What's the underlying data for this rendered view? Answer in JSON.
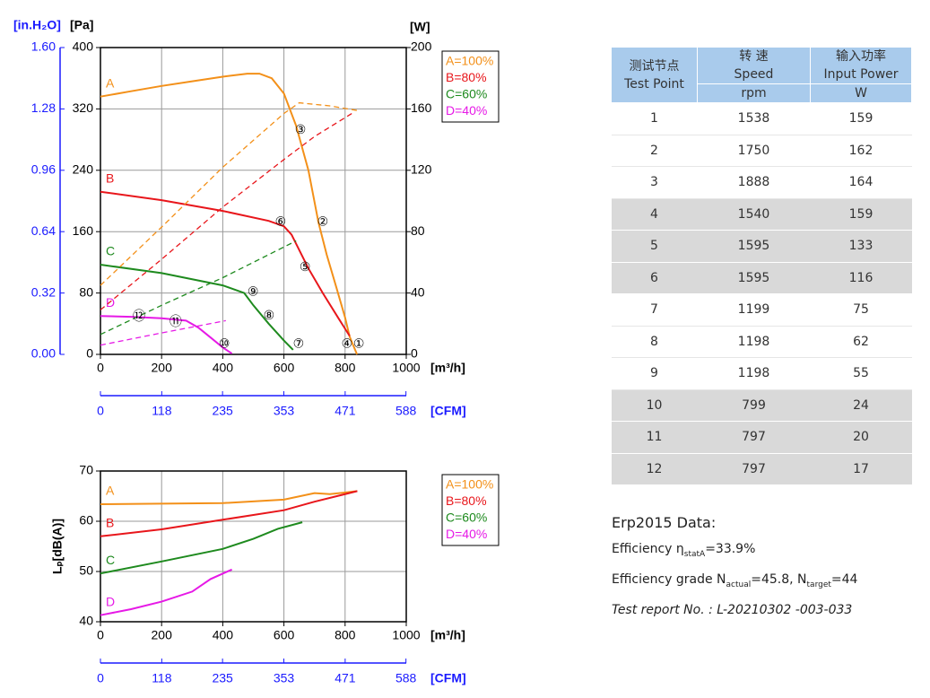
{
  "chart_data": [
    {
      "type": "line",
      "x_label": "[m³/h]",
      "x2_label": "[CFM]",
      "y_label": "[Pa]",
      "y2_label": "[W]",
      "y3_label": "[in.H₂O]",
      "xlim": [
        0,
        1000
      ],
      "xticks": [
        0,
        200,
        400,
        600,
        800,
        1000
      ],
      "x2lim": [
        0,
        588.6
      ],
      "x2ticks": [
        0,
        118,
        235,
        353,
        471,
        588
      ],
      "ylim": [
        0,
        400
      ],
      "yticks": [
        0,
        80,
        160,
        240,
        320,
        400
      ],
      "y2lim": [
        0,
        200
      ],
      "y2ticks": [
        0,
        40,
        80,
        120,
        160,
        200
      ],
      "y3lim": [
        0,
        1.6
      ],
      "y3ticks": [
        {
          "value": 0,
          "label": "0.00"
        },
        {
          "value": 0.32,
          "label": "0.32"
        },
        {
          "value": 0.64,
          "label": "0.64"
        },
        {
          "value": 0.96,
          "label": "0.96"
        },
        {
          "value": 1.28,
          "label": "1.28"
        },
        {
          "value": 1.6,
          "label": "1.60"
        }
      ],
      "grid": true,
      "legend": "outside right",
      "series": [
        {
          "name": "A=100%",
          "curve_label": "A",
          "color": "#f39019",
          "x": [
            0,
            100,
            200,
            300,
            400,
            480,
            520,
            560,
            600,
            640,
            680,
            713,
            740,
            771,
            800,
            815,
            839
          ],
          "values": [
            336,
            343,
            350,
            356,
            362,
            366,
            366,
            360,
            340,
            298,
            240,
            172,
            130,
            88,
            48,
            23,
            0
          ]
        },
        {
          "name": "B=80%",
          "curve_label": "B",
          "color": "#e8161b",
          "x": [
            0,
            200,
            400,
            550,
            600,
            625,
            660,
            680,
            727,
            780,
            815
          ],
          "values": [
            212,
            201,
            187,
            174,
            167,
            156,
            128,
            112,
            80,
            46,
            24
          ]
        },
        {
          "name": "C=60%",
          "curve_label": "C",
          "color": "#1e8a1e",
          "x": [
            0,
            200,
            400,
            470,
            500,
            550,
            600,
            630
          ],
          "values": [
            117,
            106,
            90,
            80,
            64,
            40,
            18,
            6
          ]
        },
        {
          "name": "D=40%",
          "curve_label": "D",
          "color": "#e619e6",
          "x": [
            0,
            100,
            200,
            280,
            320,
            360,
            400,
            430
          ],
          "values": [
            50,
            49,
            47,
            44,
            35,
            22,
            9,
            1
          ]
        },
        {
          "axis": "y2",
          "dashed": true,
          "color": "#f39019",
          "x": [
            0,
            200,
            400,
            600,
            650,
            750,
            839
          ],
          "values": [
            45,
            83,
            122,
            157,
            164,
            162,
            159
          ]
        },
        {
          "axis": "y2",
          "dashed": true,
          "color": "#e8161b",
          "x": [
            0,
            200,
            400,
            600,
            700,
            830
          ],
          "values": [
            29,
            62,
            96,
            127,
            142,
            158
          ]
        },
        {
          "axis": "y2",
          "dashed": true,
          "color": "#1e8a1e",
          "x": [
            0,
            200,
            400,
            640
          ],
          "values": [
            13,
            32,
            50,
            74
          ]
        },
        {
          "axis": "y2",
          "dashed": true,
          "color": "#e619e6",
          "x": [
            0,
            200,
            410
          ],
          "values": [
            6,
            14,
            22
          ]
        }
      ],
      "test_points": [
        {
          "label": "①",
          "x": 845,
          "y": 13
        },
        {
          "label": "②",
          "x": 727,
          "y": 172
        },
        {
          "label": "③",
          "x": 654,
          "y": 292
        },
        {
          "label": "④",
          "x": 806,
          "y": 13
        },
        {
          "label": "⑤",
          "x": 669,
          "y": 113
        },
        {
          "label": "⑥",
          "x": 589,
          "y": 172
        },
        {
          "label": "⑦",
          "x": 648,
          "y": 13
        },
        {
          "label": "⑧",
          "x": 551,
          "y": 50
        },
        {
          "label": "⑨",
          "x": 499,
          "y": 81
        },
        {
          "label": "⑩",
          "x": 405,
          "y": 13
        },
        {
          "label": "⑪",
          "x": 246,
          "y": 42
        },
        {
          "label": "⑫",
          "x": 126,
          "y": 49
        }
      ]
    },
    {
      "type": "line",
      "x_label": "[m³/h]",
      "x2_label": "[CFM]",
      "y_label": "Lₚ[dB(A)]",
      "xlim": [
        0,
        1000
      ],
      "xticks": [
        0,
        200,
        400,
        600,
        800,
        1000
      ],
      "x2lim": [
        0,
        588.6
      ],
      "x2ticks": [
        0,
        118,
        235,
        353,
        471,
        588
      ],
      "ylim": [
        40,
        70
      ],
      "yticks": [
        40,
        50,
        60,
        70
      ],
      "grid": true,
      "legend": "outside right",
      "series": [
        {
          "name": "A=100%",
          "curve_label": "A",
          "color": "#f39019",
          "x": [
            0,
            200,
            400,
            600,
            700,
            750,
            840
          ],
          "values": [
            63.4,
            63.5,
            63.6,
            64.3,
            65.6,
            65.4,
            66
          ]
        },
        {
          "name": "B=80%",
          "curve_label": "B",
          "color": "#e8161b",
          "x": [
            0,
            200,
            400,
            600,
            700,
            840
          ],
          "values": [
            57,
            58.4,
            60.3,
            62.2,
            63.9,
            66
          ]
        },
        {
          "name": "C=60%",
          "curve_label": "C",
          "color": "#1e8a1e",
          "x": [
            0,
            200,
            400,
            500,
            580,
            660
          ],
          "values": [
            49.6,
            52,
            54.5,
            56.5,
            58.5,
            59.8
          ]
        },
        {
          "name": "D=40%",
          "curve_label": "D",
          "color": "#e619e6",
          "x": [
            0,
            100,
            200,
            300,
            360,
            430
          ],
          "values": [
            41.3,
            42.5,
            44,
            46,
            48.5,
            50.4
          ]
        }
      ]
    }
  ],
  "table": {
    "header": {
      "test_point": [
        "测试节点",
        "Test Point"
      ],
      "speed": [
        "转 速",
        "Speed"
      ],
      "power": [
        "输入功率",
        "Input Power"
      ],
      "units": [
        "rpm",
        "W"
      ]
    },
    "rows": [
      [
        1,
        1538,
        159
      ],
      [
        2,
        1750,
        162
      ],
      [
        3,
        1888,
        164
      ],
      [
        4,
        1540,
        159
      ],
      [
        5,
        1595,
        133
      ],
      [
        6,
        1595,
        116
      ],
      [
        7,
        1199,
        75
      ],
      [
        8,
        1198,
        62
      ],
      [
        9,
        1198,
        55
      ],
      [
        10,
        799,
        24
      ],
      [
        11,
        797,
        20
      ],
      [
        12,
        797,
        17
      ]
    ],
    "row_shading": [
      false,
      false,
      false,
      true,
      true,
      true,
      false,
      false,
      false,
      true,
      true,
      true
    ]
  },
  "erp": {
    "title": "Erp2015  Data:",
    "efficiency": [
      "Efficiency η",
      "statA",
      "=33.9%"
    ],
    "grade": [
      "Efficiency grade N",
      "actual",
      "=45.8, N",
      "target",
      "=44"
    ],
    "report": "Test report No. : L-20210302 -003-033"
  }
}
